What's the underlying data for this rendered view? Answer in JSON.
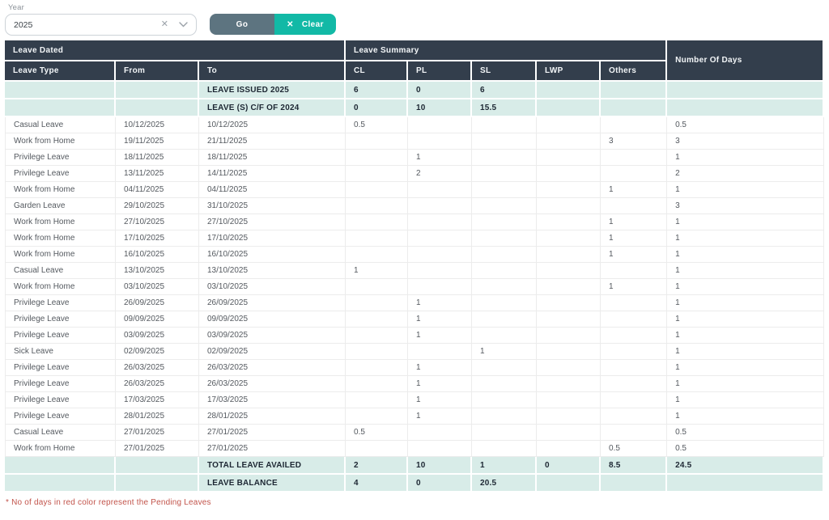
{
  "filter": {
    "year_label": "Year",
    "year_value": "2025",
    "go_label": "Go",
    "clear_label": "Clear",
    "clear_icon": "✕",
    "select_clear_icon": "✕"
  },
  "table": {
    "group_headers": {
      "leave_dated": "Leave Dated",
      "leave_summary": "Leave Summary",
      "number_of_days": "Number Of Days"
    },
    "columns": [
      "Leave Type",
      "From",
      "To",
      "CL",
      "PL",
      "SL",
      "LWP",
      "Others"
    ],
    "issued_rows": [
      {
        "label": "LEAVE ISSUED 2025",
        "cl": "6",
        "pl": "0",
        "sl": "6",
        "lwp": "",
        "others": "",
        "days": ""
      },
      {
        "label": "LEAVE (S) C/F OF 2024",
        "cl": "0",
        "pl": "10",
        "sl": "15.5",
        "lwp": "",
        "others": "",
        "days": ""
      }
    ],
    "rows": [
      {
        "type": "Casual Leave",
        "from": "10/12/2025",
        "to": "10/12/2025",
        "cl": "0.5",
        "pl": "",
        "sl": "",
        "lwp": "",
        "others": "",
        "days": "0.5"
      },
      {
        "type": "Work from Home",
        "from": "19/11/2025",
        "to": "21/11/2025",
        "cl": "",
        "pl": "",
        "sl": "",
        "lwp": "",
        "others": "3",
        "days": "3"
      },
      {
        "type": "Privilege Leave",
        "from": "18/11/2025",
        "to": "18/11/2025",
        "cl": "",
        "pl": "1",
        "sl": "",
        "lwp": "",
        "others": "",
        "days": "1"
      },
      {
        "type": "Privilege Leave",
        "from": "13/11/2025",
        "to": "14/11/2025",
        "cl": "",
        "pl": "2",
        "sl": "",
        "lwp": "",
        "others": "",
        "days": "2"
      },
      {
        "type": "Work from Home",
        "from": "04/11/2025",
        "to": "04/11/2025",
        "cl": "",
        "pl": "",
        "sl": "",
        "lwp": "",
        "others": "1",
        "days": "1"
      },
      {
        "type": "Garden Leave",
        "from": "29/10/2025",
        "to": "31/10/2025",
        "cl": "",
        "pl": "",
        "sl": "",
        "lwp": "",
        "others": "",
        "days": "3"
      },
      {
        "type": "Work from Home",
        "from": "27/10/2025",
        "to": "27/10/2025",
        "cl": "",
        "pl": "",
        "sl": "",
        "lwp": "",
        "others": "1",
        "days": "1"
      },
      {
        "type": "Work from Home",
        "from": "17/10/2025",
        "to": "17/10/2025",
        "cl": "",
        "pl": "",
        "sl": "",
        "lwp": "",
        "others": "1",
        "days": "1"
      },
      {
        "type": "Work from Home",
        "from": "16/10/2025",
        "to": "16/10/2025",
        "cl": "",
        "pl": "",
        "sl": "",
        "lwp": "",
        "others": "1",
        "days": "1"
      },
      {
        "type": "Casual Leave",
        "from": "13/10/2025",
        "to": "13/10/2025",
        "cl": "1",
        "pl": "",
        "sl": "",
        "lwp": "",
        "others": "",
        "days": "1"
      },
      {
        "type": "Work from Home",
        "from": "03/10/2025",
        "to": "03/10/2025",
        "cl": "",
        "pl": "",
        "sl": "",
        "lwp": "",
        "others": "1",
        "days": "1"
      },
      {
        "type": "Privilege Leave",
        "from": "26/09/2025",
        "to": "26/09/2025",
        "cl": "",
        "pl": "1",
        "sl": "",
        "lwp": "",
        "others": "",
        "days": "1"
      },
      {
        "type": "Privilege Leave",
        "from": "09/09/2025",
        "to": "09/09/2025",
        "cl": "",
        "pl": "1",
        "sl": "",
        "lwp": "",
        "others": "",
        "days": "1"
      },
      {
        "type": "Privilege Leave",
        "from": "03/09/2025",
        "to": "03/09/2025",
        "cl": "",
        "pl": "1",
        "sl": "",
        "lwp": "",
        "others": "",
        "days": "1"
      },
      {
        "type": "Sick Leave",
        "from": "02/09/2025",
        "to": "02/09/2025",
        "cl": "",
        "pl": "",
        "sl": "1",
        "lwp": "",
        "others": "",
        "days": "1"
      },
      {
        "type": "Privilege Leave",
        "from": "26/03/2025",
        "to": "26/03/2025",
        "cl": "",
        "pl": "1",
        "sl": "",
        "lwp": "",
        "others": "",
        "days": "1"
      },
      {
        "type": "Privilege Leave",
        "from": "26/03/2025",
        "to": "26/03/2025",
        "cl": "",
        "pl": "1",
        "sl": "",
        "lwp": "",
        "others": "",
        "days": "1"
      },
      {
        "type": "Privilege Leave",
        "from": "17/03/2025",
        "to": "17/03/2025",
        "cl": "",
        "pl": "1",
        "sl": "",
        "lwp": "",
        "others": "",
        "days": "1"
      },
      {
        "type": "Privilege Leave",
        "from": "28/01/2025",
        "to": "28/01/2025",
        "cl": "",
        "pl": "1",
        "sl": "",
        "lwp": "",
        "others": "",
        "days": "1"
      },
      {
        "type": "Casual Leave",
        "from": "27/01/2025",
        "to": "27/01/2025",
        "cl": "0.5",
        "pl": "",
        "sl": "",
        "lwp": "",
        "others": "",
        "days": "0.5"
      },
      {
        "type": "Work from Home",
        "from": "27/01/2025",
        "to": "27/01/2025",
        "cl": "",
        "pl": "",
        "sl": "",
        "lwp": "",
        "others": "0.5",
        "days": "0.5"
      }
    ],
    "total_rows": [
      {
        "label": "TOTAL LEAVE AVAILED",
        "cl": "2",
        "pl": "10",
        "sl": "1",
        "lwp": "0",
        "others": "8.5",
        "days": "24.5"
      },
      {
        "label": "LEAVE BALANCE",
        "cl": "4",
        "pl": "0",
        "sl": "20.5",
        "lwp": "",
        "others": "",
        "days": ""
      }
    ]
  },
  "footnote": "* No of days in red color represent the Pending Leaves",
  "colors": {
    "navy": "#333e4c",
    "mint": "#d8ece8",
    "teal": "#12b9a6",
    "slate": "#5d7480",
    "red": "#c2544b"
  }
}
